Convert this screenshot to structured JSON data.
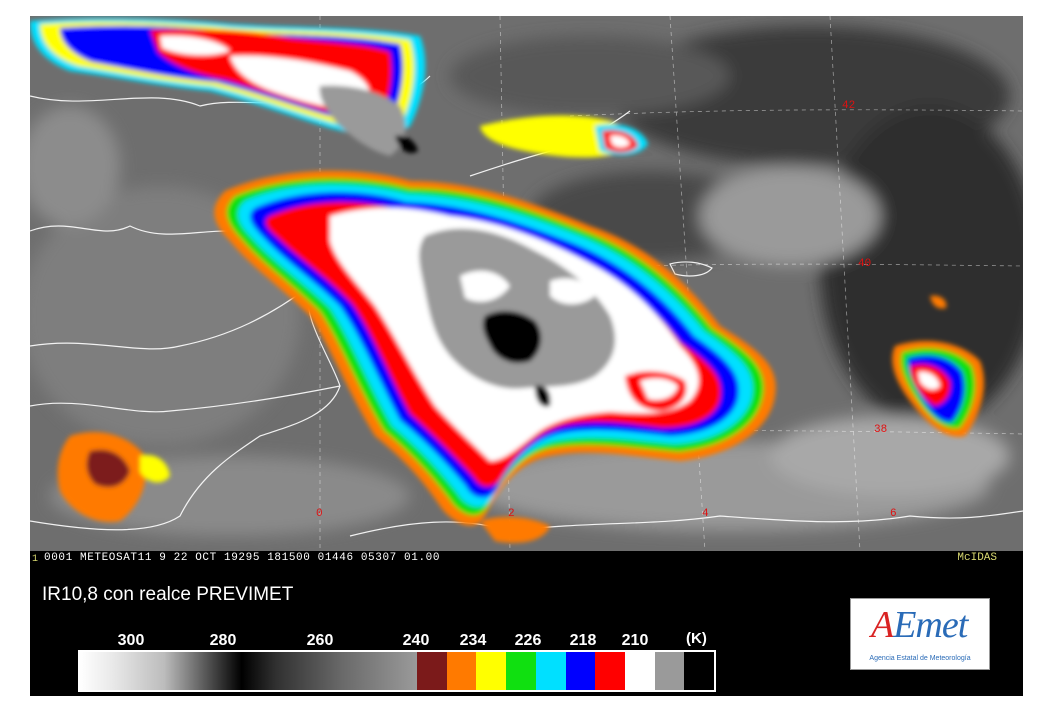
{
  "header": {
    "index": "1",
    "text": "0001 METEOSAT11 9 22 OCT 19295 181500 01446 05307 01.00",
    "system": "McIDAS"
  },
  "product_title": "IR10,8 con realce PREVIMET",
  "grid": {
    "latitudes": [
      "42",
      "40",
      "38"
    ],
    "longitudes": [
      "0",
      "2",
      "4",
      "6"
    ]
  },
  "colorbar": {
    "unit": "(K)",
    "ticks": [
      "300",
      "280",
      "260",
      "240",
      "234",
      "226",
      "218",
      "210"
    ],
    "swatches": [
      "#7b1a1a",
      "#ff7a00",
      "#ffff00",
      "#10e010",
      "#00e0ff",
      "#0000ff",
      "#ff0000",
      "#ffffff",
      "#9a9a9a",
      "#000000"
    ]
  },
  "logo": {
    "word_first": "A",
    "word_rest": "Emet",
    "subtitle": "Agencia Estatal de Meteorología"
  }
}
